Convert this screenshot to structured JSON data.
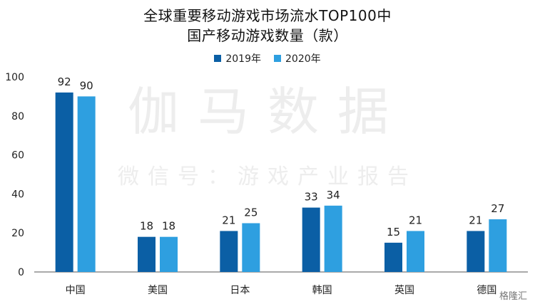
{
  "chart_data": {
    "type": "bar",
    "title_lines": [
      "全球重要移动游戏市场流水TOP100中",
      "国产移动游戏数量（款）"
    ],
    "categories": [
      "中国",
      "美国",
      "日本",
      "韩国",
      "英国",
      "德国"
    ],
    "series": [
      {
        "name": "2019年",
        "values": [
          92,
          18,
          21,
          33,
          15,
          21
        ],
        "color": "#0b5fa5"
      },
      {
        "name": "2020年",
        "values": [
          90,
          18,
          25,
          34,
          21,
          27
        ],
        "color": "#2e9fe0"
      }
    ],
    "y_ticks": [
      0,
      20,
      40,
      60,
      80,
      100
    ],
    "ylim": [
      0,
      100
    ],
    "grid": false,
    "legend_position": "top-center",
    "data_labels": true
  },
  "watermark": {
    "main": "伽马数据",
    "sub": "微信号：游戏产业报告"
  },
  "corner_logo": "格隆汇"
}
